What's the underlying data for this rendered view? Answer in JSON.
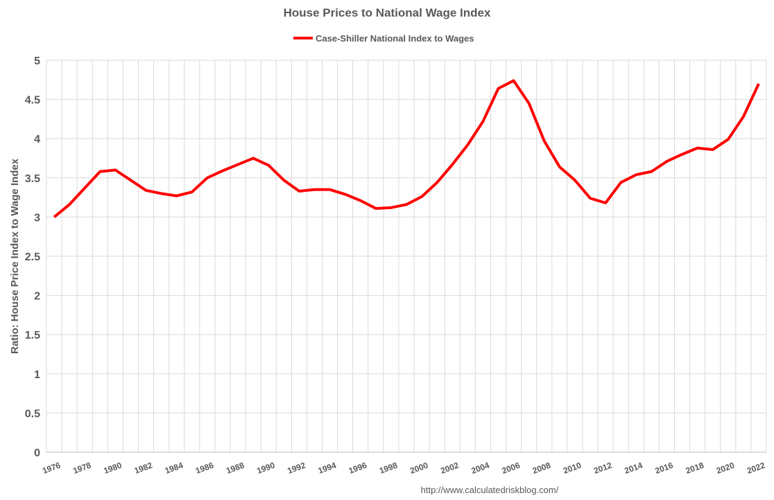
{
  "chart_data": {
    "type": "line",
    "title": "House Prices to National Wage Index",
    "y_label": "Ratio: House Price Index to Wage Index",
    "source": "http://www.calculatedriskblog.com/",
    "categories": [
      "1976",
      null,
      "1978",
      null,
      "1980",
      null,
      "1982",
      null,
      "1984",
      null,
      "1986",
      null,
      "1988",
      null,
      "1990",
      null,
      "1992",
      null,
      "1994",
      null,
      "1996",
      null,
      "1998",
      null,
      "2000",
      null,
      "2002",
      null,
      "2004",
      null,
      "2006",
      null,
      "2008",
      null,
      "2010",
      null,
      "2012",
      null,
      "2014",
      null,
      "2016",
      null,
      "2018",
      null,
      "2020",
      null,
      "2022"
    ],
    "series": [
      {
        "name": "Case-Shiller National Index to Wages",
        "color": "#ff0000",
        "values": [
          3.0,
          3.16,
          3.37,
          3.58,
          3.6,
          3.47,
          3.34,
          3.3,
          3.27,
          3.32,
          3.5,
          3.59,
          3.67,
          3.75,
          3.66,
          3.47,
          3.33,
          3.35,
          3.35,
          3.29,
          3.21,
          3.11,
          3.12,
          3.16,
          3.26,
          3.44,
          3.67,
          3.92,
          4.22,
          4.64,
          4.74,
          4.45,
          3.97,
          3.64,
          3.47,
          3.24,
          3.18,
          3.44,
          3.54,
          3.58,
          3.71,
          3.8,
          3.88,
          3.86,
          3.99,
          4.28,
          4.7
        ]
      }
    ],
    "ylim": [
      0,
      5
    ],
    "yticks": [
      0,
      0.5,
      1,
      1.5,
      2,
      2.5,
      3,
      3.5,
      4,
      4.5,
      5
    ],
    "grid": true,
    "legend": "top"
  }
}
